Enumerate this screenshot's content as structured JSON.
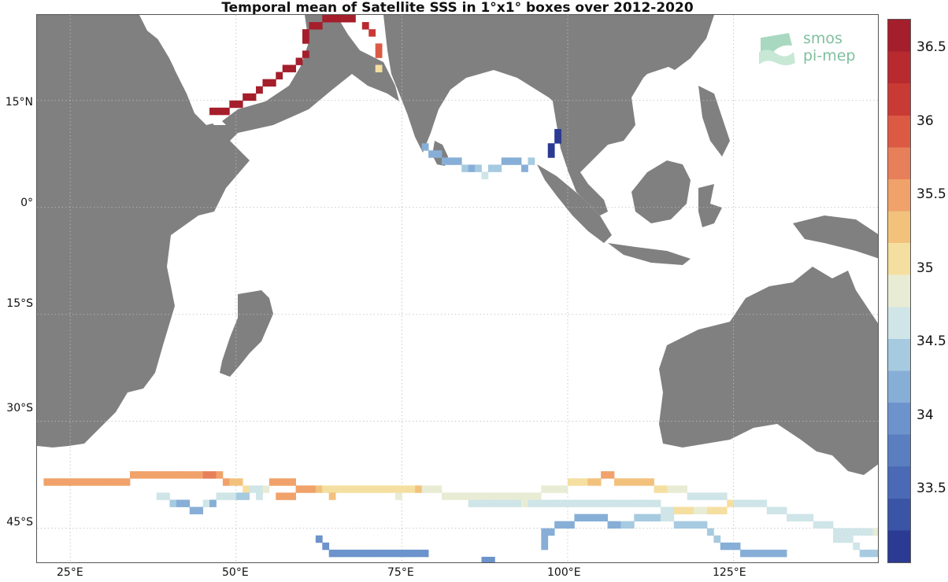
{
  "title": "Temporal mean of Satellite SSS in 1°x1° boxes over 2012-2020",
  "logo": {
    "line1": "smos",
    "line2": "pi-mep",
    "color": "#7fbf9f"
  },
  "lat_labels": [
    "15°N",
    "0°",
    "15°S",
    "30°S",
    "45°S"
  ],
  "lon_labels": [
    "25°E",
    "50°E",
    "75°E",
    "100°E",
    "125°E"
  ],
  "colorbar": {
    "min": 33.0,
    "max": 36.7,
    "ticks": [
      "33.5",
      "34",
      "34.5",
      "35",
      "35.5",
      "36",
      "36.5"
    ],
    "colors": [
      "#2b3a93",
      "#3a54a6",
      "#4a6ab5",
      "#5b7ec0",
      "#6c93cc",
      "#87aed6",
      "#a6cae0",
      "#cfe5e8",
      "#e9ecd4",
      "#f5dfa0",
      "#f2c27d",
      "#f0a26a",
      "#e7805a",
      "#dc5a44",
      "#c93a35",
      "#b82a2e",
      "#a51e2b"
    ]
  },
  "map": {
    "lon_range": [
      20,
      147
    ],
    "lat_range": [
      -50,
      27
    ],
    "land_color": "#808080",
    "grid": "dotted"
  }
}
